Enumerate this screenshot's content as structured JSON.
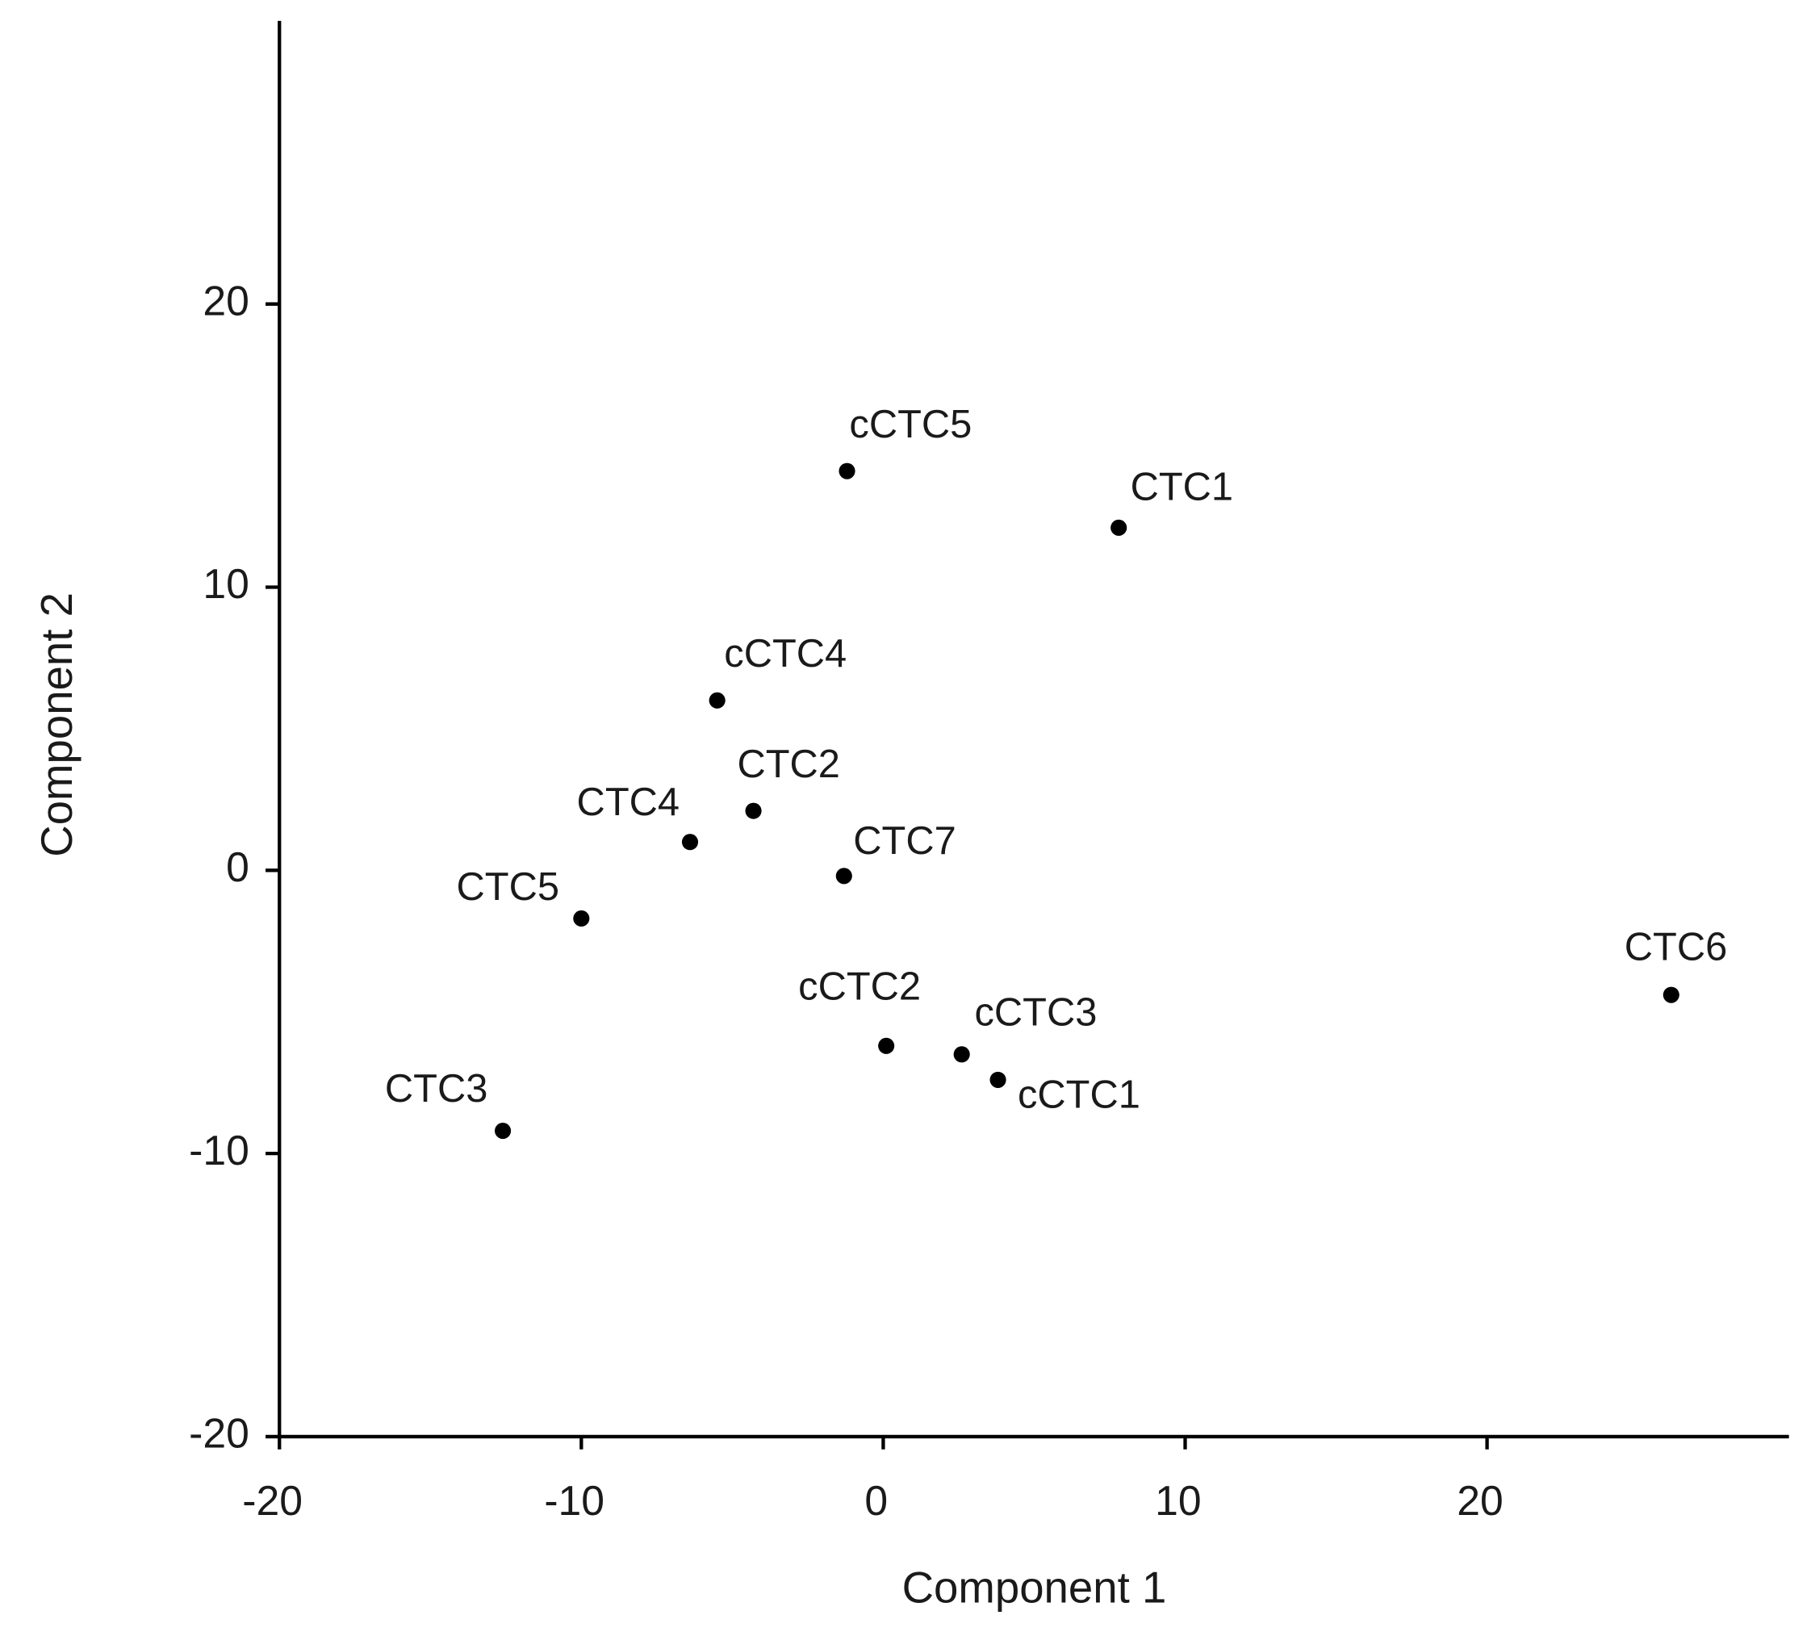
{
  "chart_data": {
    "type": "scatter",
    "xlabel": "Component 1",
    "ylabel": "Component 2",
    "labels": [
      "cCTC5",
      "CTC1",
      "cCTC4",
      "CTC2",
      "CTC4",
      "CTC7",
      "CTC5",
      "cCTC2",
      "cCTC3",
      "cCTC1",
      "CTC3",
      "CTC6"
    ],
    "x": [
      -1.2,
      7.8,
      -5.5,
      -4.3,
      -6.4,
      -1.3,
      -10.0,
      0.1,
      2.6,
      3.8,
      -12.6,
      26.1
    ],
    "values": [
      14.1,
      12.1,
      6.0,
      2.1,
      1.0,
      -0.2,
      -1.7,
      -6.2,
      -6.5,
      -7.4,
      -9.2,
      -4.4
    ],
    "color": "#000000",
    "xlim": [
      -20,
      30
    ],
    "ylim": [
      -20,
      30
    ],
    "xticks": [
      -20,
      -10,
      0,
      10,
      20
    ],
    "yticks": [
      -20,
      -10,
      0,
      10,
      20
    ]
  }
}
